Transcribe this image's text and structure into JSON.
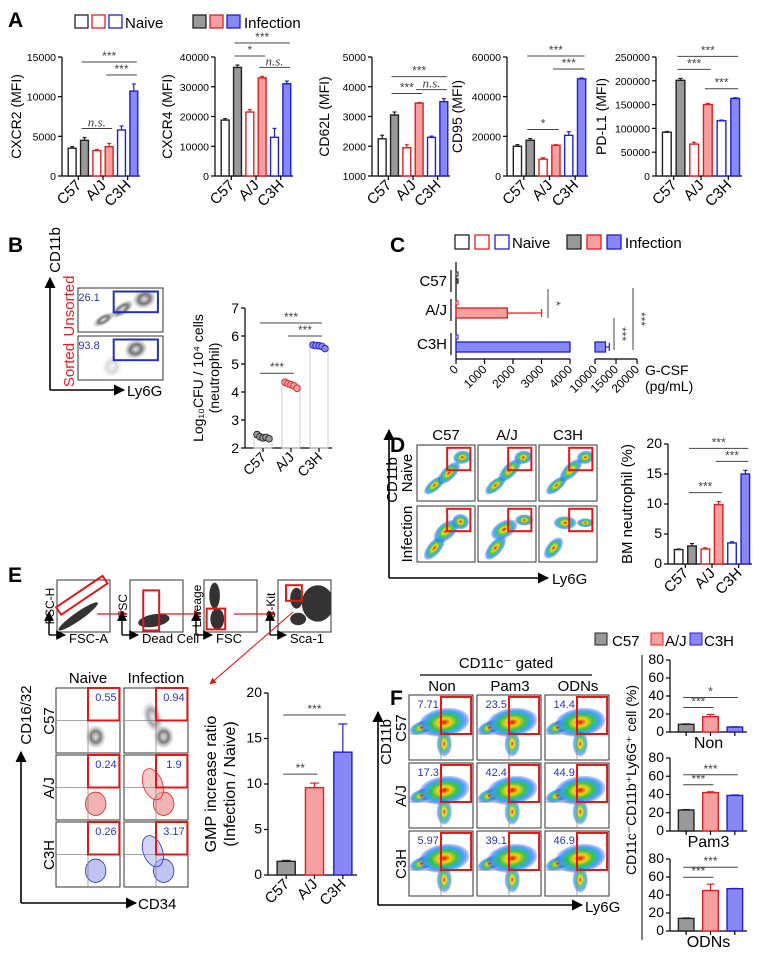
{
  "panel_labels": {
    "A": "A",
    "B": "B",
    "C": "C",
    "D": "D",
    "E": "E",
    "F": "F"
  },
  "colors": {
    "strains": [
      {
        "name": "C57",
        "stroke": "#222222",
        "fill": "#999999"
      },
      {
        "name": "A/J",
        "stroke": "#e02020",
        "fill": "#f4a0a0"
      },
      {
        "name": "C3H",
        "stroke": "#2020d0",
        "fill": "#8888f4"
      }
    ],
    "label_red": "#e02020",
    "value_blue": "#2a35b0",
    "gate_red": "#e01818"
  },
  "legend_A": {
    "naive": "Naive",
    "infection": "Infection"
  },
  "legend_C": {
    "naive": "Naive",
    "infection": "Infection"
  },
  "legend_F": {
    "items": [
      "C57",
      "A/J",
      "C3H"
    ]
  },
  "panel_B": {
    "y_axis": "CD11b",
    "x_axis": "Ly6G",
    "rows": [
      {
        "label": "Unsorted",
        "gate_value": "26.1"
      },
      {
        "label": "Sorted",
        "gate_value": "93.8"
      }
    ]
  },
  "panel_D": {
    "y_axis": "CD11b",
    "x_axis": "Ly6G",
    "columns": [
      "C57",
      "A/J",
      "C3H"
    ],
    "rows": [
      "Naive",
      "Infection"
    ]
  },
  "panel_E": {
    "gating": [
      {
        "y": "FSC-H",
        "x": "FSC-A"
      },
      {
        "y": "FSC",
        "x": "Dead Cell"
      },
      {
        "y": "Lineage",
        "x": "FSC"
      },
      {
        "y": "C-Kit",
        "x": "Sca-1"
      }
    ],
    "y_axis": "CD16/32",
    "x_axis": "CD34",
    "columns": [
      "Naive",
      "Infection"
    ],
    "rows": [
      "C57",
      "A/J",
      "C3H"
    ],
    "values": [
      [
        "0.55",
        "0.94"
      ],
      [
        "0.24",
        "1.9"
      ],
      [
        "0.26",
        "3.17"
      ]
    ]
  },
  "panel_F": {
    "header": "CD11c⁻ gated",
    "y_axis": "CD11b",
    "x_axis": "Ly6G",
    "columns": [
      "Non",
      "Pam3",
      "ODNs"
    ],
    "rows": [
      "C57",
      "A/J",
      "C3H"
    ],
    "values": [
      [
        "7.71",
        "23.5",
        "14.4"
      ],
      [
        "17.3",
        "42.4",
        "44.9"
      ],
      [
        "5.97",
        "39.1",
        "46.9"
      ]
    ],
    "chart_ylabel": "CD11c⁻CD11b⁺Ly6G⁺ cell (%)"
  },
  "chart_data": [
    {
      "type": "bar",
      "categories": [
        "C57",
        "A/J",
        "C3H"
      ],
      "series": [
        {
          "name": "Naive",
          "values": [
            3500,
            3200,
            5800
          ],
          "errors": [
            200,
            150,
            500
          ]
        },
        {
          "name": "Infection",
          "values": [
            4500,
            3700,
            10700
          ],
          "errors": [
            350,
            400,
            900
          ]
        }
      ],
      "ylabel": "CXCR2 (MFI)",
      "ylim": [
        0,
        15000
      ],
      "yticks": [
        "0",
        "5000",
        "10000",
        "15000"
      ],
      "annotations": [
        {
          "from": 1,
          "to": 5,
          "label": "***"
        },
        {
          "from": 3,
          "to": 5,
          "label": "***"
        },
        {
          "from": 1,
          "to": 3,
          "label": "n.s."
        }
      ]
    },
    {
      "type": "bar",
      "categories": [
        "C57",
        "A/J",
        "C3H"
      ],
      "series": [
        {
          "name": "Naive",
          "values": [
            18800,
            21500,
            13000
          ],
          "errors": [
            500,
            800,
            3000
          ]
        },
        {
          "name": "Infection",
          "values": [
            36500,
            33000,
            31000
          ],
          "errors": [
            800,
            500,
            900
          ]
        }
      ],
      "ylabel": "CXCR4 (MFI)",
      "ylim": [
        0,
        40000
      ],
      "yticks": [
        "0",
        "10000",
        "20000",
        "30000",
        "40000"
      ],
      "annotations": [
        {
          "from": 1,
          "to": 5,
          "label": "***"
        },
        {
          "from": 1,
          "to": 3,
          "label": "*"
        },
        {
          "from": 3,
          "to": 5,
          "label": "n.s."
        }
      ]
    },
    {
      "type": "bar",
      "categories": [
        "C57",
        "A/J",
        "C3H"
      ],
      "series": [
        {
          "name": "Naive",
          "values": [
            2250,
            1950,
            2300
          ],
          "errors": [
            120,
            100,
            40
          ]
        },
        {
          "name": "Infection",
          "values": [
            3050,
            3450,
            3500
          ],
          "errors": [
            100,
            20,
            100
          ]
        }
      ],
      "ylabel": "CD62L (MFI)",
      "ylim": [
        1000,
        5000
      ],
      "yticks": [
        "1000",
        "2000",
        "3000",
        "4000",
        "5000"
      ],
      "annotations": [
        {
          "from": 1,
          "to": 5,
          "label": "***"
        },
        {
          "from": 1,
          "to": 3,
          "label": "***"
        },
        {
          "from": 3,
          "to": 5,
          "label": "n.s."
        }
      ]
    },
    {
      "type": "bar",
      "categories": [
        "C57",
        "A/J",
        "C3H"
      ],
      "series": [
        {
          "name": "Naive",
          "values": [
            15000,
            8500,
            20500
          ],
          "errors": [
            800,
            700,
            1800
          ]
        },
        {
          "name": "Infection",
          "values": [
            18000,
            15500,
            49000
          ],
          "errors": [
            900,
            300,
            400
          ]
        }
      ],
      "ylabel": "CD95 (MFI)",
      "ylim": [
        0,
        60000
      ],
      "yticks": [
        "0",
        "20000",
        "40000",
        "60000"
      ],
      "annotations": [
        {
          "from": 1,
          "to": 5,
          "label": "***"
        },
        {
          "from": 3,
          "to": 5,
          "label": "***"
        },
        {
          "from": 1,
          "to": 3,
          "label": "*"
        }
      ]
    },
    {
      "type": "bar",
      "categories": [
        "C57",
        "A/J",
        "C3H"
      ],
      "series": [
        {
          "name": "Naive",
          "values": [
            92000,
            67000,
            116000
          ],
          "errors": [
            1500,
            4000,
            1500
          ]
        },
        {
          "name": "Infection",
          "values": [
            201000,
            150000,
            163000
          ],
          "errors": [
            4000,
            2500,
            1500
          ]
        }
      ],
      "ylabel": "PD-L1 (MFI)",
      "ylim": [
        0,
        250000
      ],
      "yticks": [
        "0",
        "50000",
        "100000",
        "150000",
        "200000",
        "250000"
      ],
      "annotations": [
        {
          "from": 1,
          "to": 5,
          "label": "***"
        },
        {
          "from": 1,
          "to": 3,
          "label": "***"
        },
        {
          "from": 3,
          "to": 5,
          "label": "***"
        }
      ]
    },
    {
      "type": "scatter",
      "categories": [
        "C57",
        "A/J",
        "C3H"
      ],
      "points": [
        [
          2.48,
          2.4,
          2.36,
          2.38,
          2.33
        ],
        [
          4.35,
          4.3,
          4.26,
          4.22,
          4.13
        ],
        [
          5.68,
          5.66,
          5.65,
          5.63,
          5.55
        ]
      ],
      "ylabel": [
        "Log₁₀CFU / 10⁴ cells",
        "(neutrophil)"
      ],
      "ylim": [
        2,
        7
      ],
      "yticks": [
        "2",
        "3",
        "4",
        "5",
        "6",
        "7"
      ],
      "annotations": [
        {
          "from": 0,
          "to": 2,
          "label": "***"
        },
        {
          "from": 1,
          "to": 2,
          "label": "***"
        },
        {
          "from": 0,
          "to": 1,
          "label": "***"
        }
      ]
    },
    {
      "type": "bar",
      "orientation": "horizontal",
      "categories": [
        "C57",
        "A/J",
        "C3H"
      ],
      "series": [
        {
          "name": "Naive",
          "values": [
            20,
            30,
            40
          ]
        },
        {
          "name": "Infection",
          "values": [
            30,
            1800,
            12500
          ],
          "errors": [
            0,
            1200,
            900
          ]
        }
      ],
      "xlabel": [
        "G-CSF",
        "(pg/mL)"
      ],
      "xticks": [
        "0",
        "1000",
        "2000",
        "3000",
        "4000",
        "10000",
        "15000",
        "20000"
      ],
      "axis_break": [
        4000,
        10000
      ],
      "annotations": [
        {
          "from": 0,
          "to": 1,
          "label": "*"
        },
        {
          "from": 1,
          "to": 2,
          "label": "***"
        },
        {
          "from": 0,
          "to": 2,
          "label": "***"
        }
      ]
    },
    {
      "type": "bar",
      "categories": [
        "C57",
        "A/J",
        "C3H"
      ],
      "series": [
        {
          "name": "Naive",
          "values": [
            2.4,
            2.5,
            3.5
          ],
          "errors": [
            0.1,
            0.2,
            0.2
          ]
        },
        {
          "name": "Infection",
          "values": [
            3.0,
            9.9,
            15.0
          ],
          "errors": [
            0.4,
            0.5,
            0.6
          ]
        }
      ],
      "ylabel": "BM neutrophil (%)",
      "ylim": [
        0,
        20
      ],
      "yticks": [
        "0",
        "5",
        "10",
        "15",
        "20"
      ],
      "annotations": [
        {
          "from": 1,
          "to": 3,
          "label": "***"
        },
        {
          "from": 1,
          "to": 5,
          "label": "***"
        },
        {
          "from": 3,
          "to": 5,
          "label": "***"
        }
      ]
    },
    {
      "type": "bar",
      "categories": [
        "C57",
        "A/J",
        "C3H"
      ],
      "series": [
        {
          "values": [
            1.5,
            9.6,
            13.5
          ],
          "errors": [
            0.1,
            0.5,
            3.1
          ]
        }
      ],
      "ylabel": [
        "GMP increase ratio",
        "(Infection / Naive)"
      ],
      "ylim": [
        0,
        20
      ],
      "yticks": [
        "0",
        "5",
        "10",
        "15",
        "20"
      ],
      "annotations": [
        {
          "from": 0,
          "to": 1,
          "label": "**"
        },
        {
          "from": 0,
          "to": 2,
          "label": "***"
        }
      ]
    },
    {
      "type": "bar",
      "categories": [
        "C57",
        "A/J",
        "C3H"
      ],
      "series": [
        {
          "values": [
            8.5,
            17,
            5.5
          ],
          "errors": [
            0.5,
            2.5,
            0.3
          ]
        }
      ],
      "xlabel": "Non",
      "ylim": [
        0,
        80
      ],
      "yticks": [
        "0",
        "20",
        "40",
        "60",
        "80"
      ],
      "annotations": [
        {
          "from": 0,
          "to": 1,
          "label": "***"
        },
        {
          "from": 0,
          "to": 2,
          "label": "*"
        }
      ]
    },
    {
      "type": "bar",
      "categories": [
        "C57",
        "A/J",
        "C3H"
      ],
      "series": [
        {
          "values": [
            23,
            42,
            39
          ],
          "errors": [
            0.5,
            1,
            0.5
          ]
        }
      ],
      "xlabel": "Pam3",
      "ylim": [
        0,
        80
      ],
      "yticks": [
        "0",
        "20",
        "40",
        "60",
        "80"
      ],
      "annotations": [
        {
          "from": 0,
          "to": 1,
          "label": "***"
        },
        {
          "from": 0,
          "to": 2,
          "label": "***"
        }
      ]
    },
    {
      "type": "bar",
      "categories": [
        "C57",
        "A/J",
        "C3H"
      ],
      "series": [
        {
          "values": [
            14,
            45,
            47
          ],
          "errors": [
            0.5,
            7,
            0.3
          ]
        }
      ],
      "xlabel": "ODNs",
      "ylim": [
        0,
        80
      ],
      "yticks": [
        "0",
        "20",
        "40",
        "60",
        "80"
      ],
      "annotations": [
        {
          "from": 0,
          "to": 1,
          "label": "***"
        },
        {
          "from": 0,
          "to": 2,
          "label": "***"
        }
      ]
    }
  ]
}
